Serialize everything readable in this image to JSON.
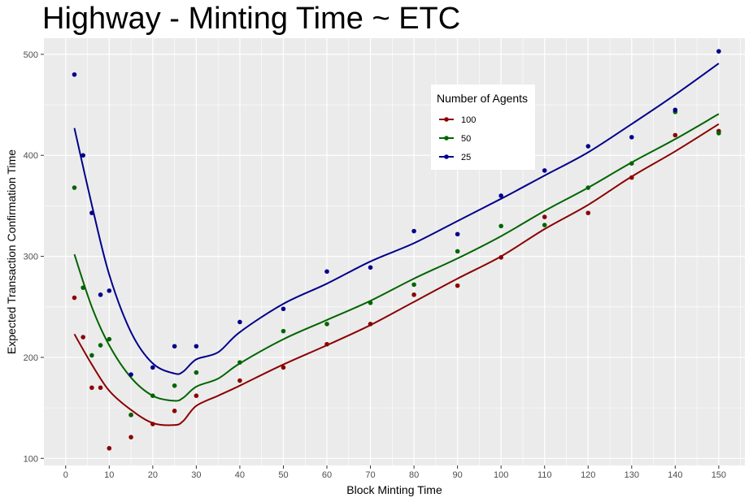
{
  "chart_data": {
    "type": "scatter",
    "title": "Highway - Minting Time ~ ETC",
    "xlabel": "Block Minting Time",
    "ylabel": "Expected Transaction Confirmation Time",
    "xlim": [
      -5,
      156
    ],
    "ylim": [
      93,
      516
    ],
    "xticks": [
      0,
      10,
      20,
      30,
      40,
      50,
      60,
      70,
      80,
      90,
      100,
      110,
      120,
      130,
      140,
      150
    ],
    "yticks": [
      100,
      200,
      300,
      400,
      500
    ],
    "grid": true,
    "legend": {
      "title": "Number of Agents",
      "position": "top-right"
    },
    "series": [
      {
        "name": "100",
        "color": "#8b0000",
        "points": [
          [
            2,
            259
          ],
          [
            4,
            220
          ],
          [
            6,
            170
          ],
          [
            8,
            170
          ],
          [
            10,
            110
          ],
          [
            15,
            121
          ],
          [
            15,
            143
          ],
          [
            20,
            134
          ],
          [
            25,
            147
          ],
          [
            30,
            162
          ],
          [
            40,
            177
          ],
          [
            50,
            190
          ],
          [
            60,
            213
          ],
          [
            70,
            233
          ],
          [
            80,
            262
          ],
          [
            90,
            271
          ],
          [
            100,
            299
          ],
          [
            110,
            339
          ],
          [
            120,
            343
          ],
          [
            130,
            378
          ],
          [
            140,
            420
          ],
          [
            150,
            424
          ]
        ],
        "trend": [
          [
            2,
            223
          ],
          [
            6,
            193
          ],
          [
            10,
            167
          ],
          [
            15,
            148
          ],
          [
            20,
            135
          ],
          [
            25,
            133
          ],
          [
            27,
            137
          ],
          [
            30,
            152
          ],
          [
            35,
            162
          ],
          [
            40,
            172
          ],
          [
            50,
            193
          ],
          [
            60,
            212
          ],
          [
            70,
            232
          ],
          [
            80,
            255
          ],
          [
            90,
            278
          ],
          [
            100,
            300
          ],
          [
            110,
            327
          ],
          [
            120,
            351
          ],
          [
            130,
            379
          ],
          [
            140,
            404
          ],
          [
            150,
            431
          ]
        ]
      },
      {
        "name": "50",
        "color": "#006400",
        "points": [
          [
            2,
            368
          ],
          [
            4,
            269
          ],
          [
            6,
            202
          ],
          [
            8,
            212
          ],
          [
            10,
            218
          ],
          [
            15,
            143
          ],
          [
            20,
            162
          ],
          [
            25,
            172
          ],
          [
            30,
            185
          ],
          [
            40,
            195
          ],
          [
            50,
            226
          ],
          [
            60,
            233
          ],
          [
            70,
            254
          ],
          [
            80,
            272
          ],
          [
            90,
            305
          ],
          [
            100,
            330
          ],
          [
            110,
            331
          ],
          [
            120,
            368
          ],
          [
            130,
            392
          ],
          [
            140,
            443
          ],
          [
            150,
            422
          ]
        ],
        "trend": [
          [
            2,
            302
          ],
          [
            6,
            250
          ],
          [
            10,
            212
          ],
          [
            15,
            180
          ],
          [
            20,
            162
          ],
          [
            25,
            157
          ],
          [
            27,
            160
          ],
          [
            30,
            171
          ],
          [
            35,
            179
          ],
          [
            40,
            194
          ],
          [
            50,
            218
          ],
          [
            60,
            237
          ],
          [
            70,
            256
          ],
          [
            80,
            278
          ],
          [
            90,
            298
          ],
          [
            100,
            320
          ],
          [
            110,
            345
          ],
          [
            120,
            368
          ],
          [
            130,
            393
          ],
          [
            140,
            416
          ],
          [
            150,
            441
          ]
        ]
      },
      {
        "name": "25",
        "color": "#00008b",
        "points": [
          [
            2,
            480
          ],
          [
            4,
            400
          ],
          [
            6,
            343
          ],
          [
            8,
            262
          ],
          [
            10,
            266
          ],
          [
            15,
            183
          ],
          [
            20,
            190
          ],
          [
            25,
            211
          ],
          [
            30,
            211
          ],
          [
            40,
            235
          ],
          [
            50,
            248
          ],
          [
            60,
            285
          ],
          [
            70,
            289
          ],
          [
            80,
            325
          ],
          [
            90,
            322
          ],
          [
            100,
            360
          ],
          [
            110,
            385
          ],
          [
            120,
            409
          ],
          [
            130,
            418
          ],
          [
            140,
            445
          ],
          [
            150,
            503
          ]
        ],
        "trend": [
          [
            2,
            427
          ],
          [
            6,
            351
          ],
          [
            10,
            282
          ],
          [
            15,
            225
          ],
          [
            20,
            194
          ],
          [
            25,
            184
          ],
          [
            27,
            186
          ],
          [
            30,
            198
          ],
          [
            35,
            205
          ],
          [
            40,
            225
          ],
          [
            50,
            253
          ],
          [
            60,
            273
          ],
          [
            70,
            295
          ],
          [
            80,
            313
          ],
          [
            90,
            335
          ],
          [
            100,
            357
          ],
          [
            110,
            380
          ],
          [
            120,
            403
          ],
          [
            130,
            431
          ],
          [
            140,
            460
          ],
          [
            150,
            491
          ]
        ]
      }
    ]
  }
}
